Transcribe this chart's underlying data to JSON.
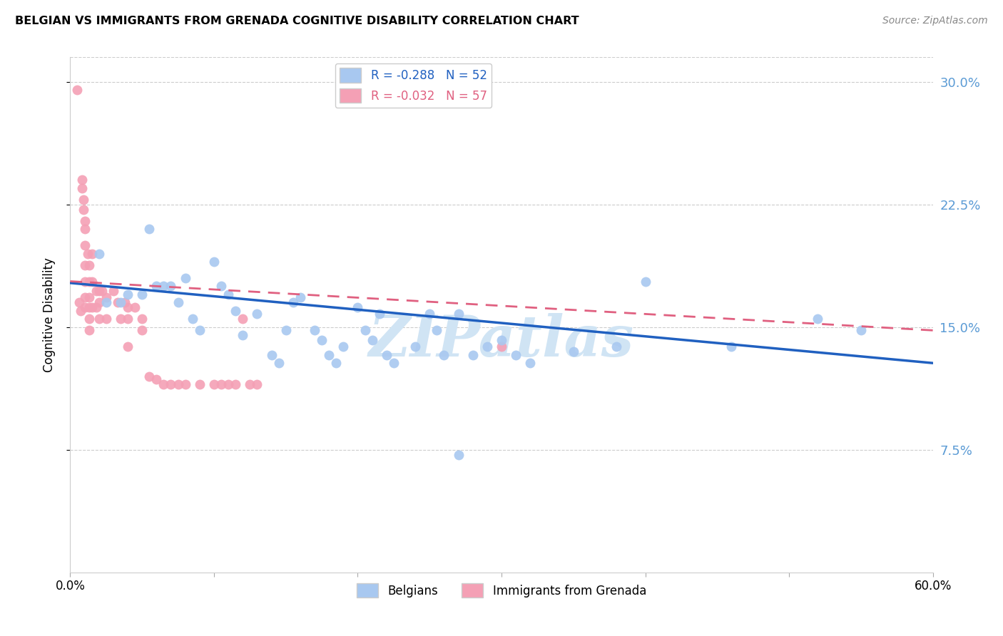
{
  "title": "BELGIAN VS IMMIGRANTS FROM GRENADA COGNITIVE DISABILITY CORRELATION CHART",
  "source": "Source: ZipAtlas.com",
  "ylabel": "Cognitive Disability",
  "x_min": 0.0,
  "x_max": 0.6,
  "y_min": 0.0,
  "y_max": 0.315,
  "yticks": [
    0.075,
    0.15,
    0.225,
    0.3
  ],
  "ytick_labels": [
    "7.5%",
    "15.0%",
    "22.5%",
    "30.0%"
  ],
  "xticks": [
    0.0,
    0.1,
    0.2,
    0.3,
    0.4,
    0.5,
    0.6
  ],
  "blue_color": "#A8C8F0",
  "pink_color": "#F4A0B5",
  "blue_line_color": "#2060C0",
  "pink_line_color": "#E06080",
  "watermark": "ZIPatlas",
  "watermark_color": "#D0E4F4",
  "blue_R": -0.288,
  "blue_N": 52,
  "pink_R": -0.032,
  "pink_N": 57,
  "blue_scatter_x": [
    0.02,
    0.025,
    0.035,
    0.04,
    0.05,
    0.055,
    0.06,
    0.065,
    0.07,
    0.075,
    0.08,
    0.085,
    0.09,
    0.1,
    0.105,
    0.11,
    0.115,
    0.12,
    0.13,
    0.14,
    0.145,
    0.15,
    0.155,
    0.16,
    0.17,
    0.175,
    0.18,
    0.185,
    0.19,
    0.2,
    0.205,
    0.21,
    0.215,
    0.22,
    0.225,
    0.24,
    0.25,
    0.255,
    0.26,
    0.27,
    0.28,
    0.29,
    0.3,
    0.31,
    0.32,
    0.35,
    0.38,
    0.4,
    0.46,
    0.52,
    0.55,
    0.27
  ],
  "blue_scatter_y": [
    0.195,
    0.165,
    0.165,
    0.17,
    0.17,
    0.21,
    0.175,
    0.175,
    0.175,
    0.165,
    0.18,
    0.155,
    0.148,
    0.19,
    0.175,
    0.17,
    0.16,
    0.145,
    0.158,
    0.133,
    0.128,
    0.148,
    0.165,
    0.168,
    0.148,
    0.142,
    0.133,
    0.128,
    0.138,
    0.162,
    0.148,
    0.142,
    0.158,
    0.133,
    0.128,
    0.138,
    0.158,
    0.148,
    0.133,
    0.158,
    0.133,
    0.138,
    0.142,
    0.133,
    0.128,
    0.135,
    0.138,
    0.178,
    0.138,
    0.155,
    0.148,
    0.072
  ],
  "pink_scatter_x": [
    0.005,
    0.006,
    0.007,
    0.008,
    0.008,
    0.009,
    0.009,
    0.01,
    0.01,
    0.01,
    0.01,
    0.01,
    0.01,
    0.01,
    0.012,
    0.013,
    0.013,
    0.013,
    0.013,
    0.013,
    0.013,
    0.015,
    0.015,
    0.015,
    0.018,
    0.018,
    0.02,
    0.02,
    0.02,
    0.022,
    0.025,
    0.025,
    0.03,
    0.033,
    0.035,
    0.038,
    0.04,
    0.04,
    0.04,
    0.045,
    0.05,
    0.05,
    0.055,
    0.06,
    0.065,
    0.07,
    0.075,
    0.08,
    0.09,
    0.1,
    0.105,
    0.11,
    0.115,
    0.12,
    0.125,
    0.13,
    0.3
  ],
  "pink_scatter_y": [
    0.295,
    0.165,
    0.16,
    0.24,
    0.235,
    0.228,
    0.222,
    0.215,
    0.21,
    0.2,
    0.188,
    0.178,
    0.168,
    0.162,
    0.195,
    0.188,
    0.178,
    0.168,
    0.162,
    0.155,
    0.148,
    0.195,
    0.178,
    0.162,
    0.172,
    0.162,
    0.172,
    0.165,
    0.155,
    0.172,
    0.168,
    0.155,
    0.172,
    0.165,
    0.155,
    0.165,
    0.162,
    0.155,
    0.138,
    0.162,
    0.155,
    0.148,
    0.12,
    0.118,
    0.115,
    0.115,
    0.115,
    0.115,
    0.115,
    0.115,
    0.115,
    0.115,
    0.115,
    0.155,
    0.115,
    0.115,
    0.138
  ]
}
